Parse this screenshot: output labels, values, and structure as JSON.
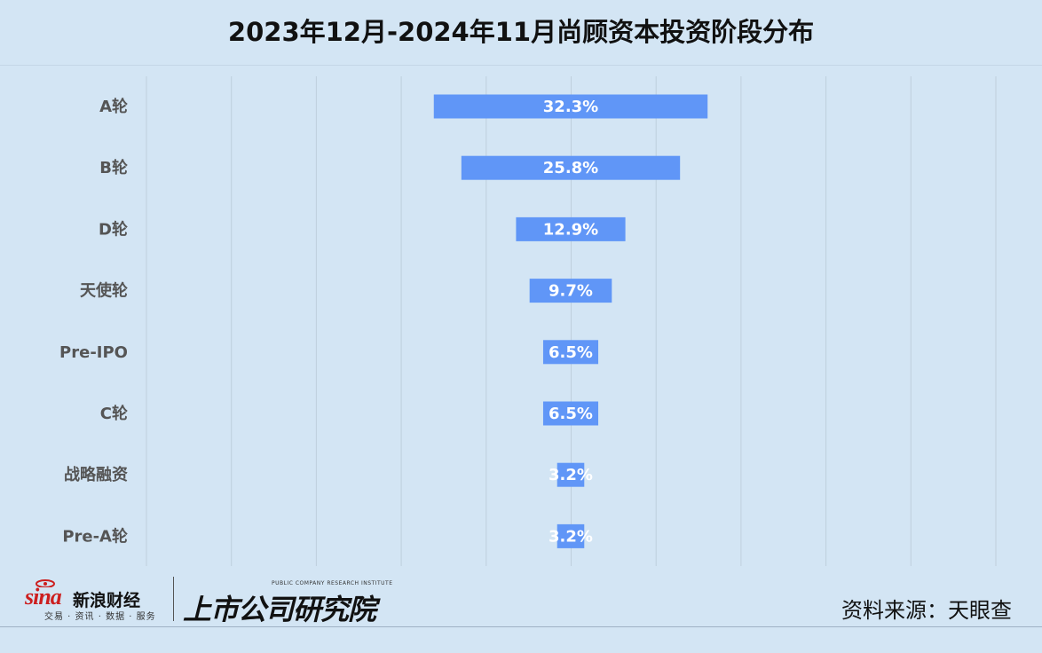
{
  "title": "2023年12月-2024年11月尚顾资本投资阶段分布",
  "chart_data": {
    "type": "bar",
    "orientation": "horizontal",
    "style": "funnel-centered",
    "categories": [
      "A轮",
      "B轮",
      "D轮",
      "天使轮",
      "Pre-IPO",
      "C轮",
      "战略融资",
      "Pre-A轮"
    ],
    "values": [
      32.3,
      25.8,
      12.9,
      9.7,
      6.5,
      6.5,
      3.2,
      3.2
    ],
    "value_labels": [
      "32.3%",
      "25.8%",
      "12.9%",
      "9.7%",
      "6.5%",
      "6.5%",
      "3.2%",
      "3.2%"
    ],
    "unit": "%",
    "xlim": [
      -50,
      50
    ],
    "grid": true,
    "bar_color": "#6096f7"
  },
  "footer": {
    "brand_sina_word": "sina",
    "brand_sina_name": "新浪财经",
    "brand_sina_tagline": "交易 · 资讯 · 数据 · 服务",
    "brand_institute_en": "PUBLIC COMPANY RESEARCH INSTITUTE",
    "brand_institute_cn": "上市公司研究院",
    "source": "资料来源：天眼查"
  }
}
